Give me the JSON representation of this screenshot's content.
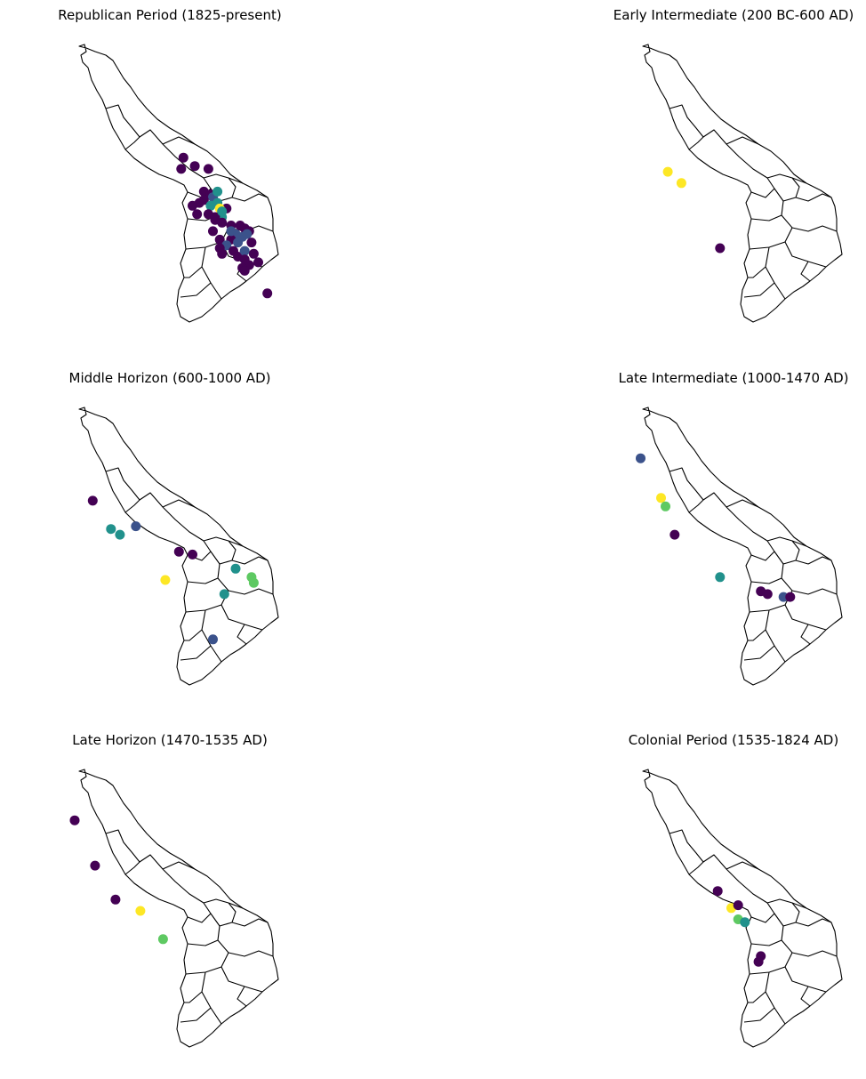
{
  "figure": {
    "panels": [
      {
        "title": "Republican Period (1825-present)"
      },
      {
        "title": "Early Intermediate (200 BC-600 AD)"
      },
      {
        "title": "Middle Horizon (600-1000 AD)"
      },
      {
        "title": "Late Intermediate (1000-1470 AD)"
      },
      {
        "title": "Late Horizon (1470-1535 AD)"
      },
      {
        "title": "Colonial Period (1535-1824 AD)"
      }
    ]
  },
  "chart_data": {
    "type": "scatter",
    "colormap": [
      "#440154",
      "#3b528b",
      "#21918c",
      "#5ec962",
      "#fde725"
    ],
    "maps": [
      {
        "title": "Republican Period (1825-present)",
        "points": [
          {
            "x": 0.57,
            "y": 0.4,
            "c": 0.0
          },
          {
            "x": 0.62,
            "y": 0.43,
            "c": 0.0
          },
          {
            "x": 0.68,
            "y": 0.44,
            "c": 0.0
          },
          {
            "x": 0.56,
            "y": 0.44,
            "c": 0.0
          },
          {
            "x": 0.66,
            "y": 0.52,
            "c": 0.0
          },
          {
            "x": 0.69,
            "y": 0.53,
            "c": 0.0
          },
          {
            "x": 0.7,
            "y": 0.54,
            "c": 0.3
          },
          {
            "x": 0.72,
            "y": 0.52,
            "c": 0.5
          },
          {
            "x": 0.66,
            "y": 0.55,
            "c": 0.0
          },
          {
            "x": 0.69,
            "y": 0.57,
            "c": 0.4
          },
          {
            "x": 0.72,
            "y": 0.56,
            "c": 0.6
          },
          {
            "x": 0.64,
            "y": 0.56,
            "c": 0.0
          },
          {
            "x": 0.61,
            "y": 0.57,
            "c": 0.0
          },
          {
            "x": 0.63,
            "y": 0.6,
            "c": 0.0
          },
          {
            "x": 0.76,
            "y": 0.58,
            "c": 0.0
          },
          {
            "x": 0.73,
            "y": 0.58,
            "c": 1.0
          },
          {
            "x": 0.74,
            "y": 0.61,
            "c": 0.5
          },
          {
            "x": 0.74,
            "y": 0.63,
            "c": 0.0
          },
          {
            "x": 0.71,
            "y": 0.62,
            "c": 0.0
          },
          {
            "x": 0.68,
            "y": 0.6,
            "c": 0.0
          },
          {
            "x": 0.7,
            "y": 0.66,
            "c": 0.0
          },
          {
            "x": 0.78,
            "y": 0.64,
            "c": 0.0
          },
          {
            "x": 0.82,
            "y": 0.64,
            "c": 0.0
          },
          {
            "x": 0.84,
            "y": 0.65,
            "c": 0.0
          },
          {
            "x": 0.86,
            "y": 0.66,
            "c": 0.0
          },
          {
            "x": 0.8,
            "y": 0.67,
            "c": 0.3
          },
          {
            "x": 0.83,
            "y": 0.68,
            "c": 0.3
          },
          {
            "x": 0.85,
            "y": 0.67,
            "c": 0.3
          },
          {
            "x": 0.78,
            "y": 0.69,
            "c": 0.0
          },
          {
            "x": 0.81,
            "y": 0.7,
            "c": 0.3
          },
          {
            "x": 0.87,
            "y": 0.7,
            "c": 0.0
          },
          {
            "x": 0.73,
            "y": 0.69,
            "c": 0.0
          },
          {
            "x": 0.76,
            "y": 0.71,
            "c": 0.3
          },
          {
            "x": 0.73,
            "y": 0.72,
            "c": 0.0
          },
          {
            "x": 0.74,
            "y": 0.74,
            "c": 0.0
          },
          {
            "x": 0.79,
            "y": 0.73,
            "c": 0.0
          },
          {
            "x": 0.81,
            "y": 0.75,
            "c": 0.0
          },
          {
            "x": 0.84,
            "y": 0.73,
            "c": 0.3
          },
          {
            "x": 0.88,
            "y": 0.74,
            "c": 0.0
          },
          {
            "x": 0.84,
            "y": 0.76,
            "c": 0.0
          },
          {
            "x": 0.86,
            "y": 0.78,
            "c": 0.0
          },
          {
            "x": 0.83,
            "y": 0.79,
            "c": 0.0
          },
          {
            "x": 0.9,
            "y": 0.77,
            "c": 0.0
          },
          {
            "x": 0.84,
            "y": 0.8,
            "c": 0.0
          },
          {
            "x": 0.78,
            "y": 0.66,
            "c": 0.3
          },
          {
            "x": 0.71,
            "y": 0.61,
            "c": 0.0
          },
          {
            "x": 0.94,
            "y": 0.88,
            "c": 0.0
          },
          {
            "x": 0.74,
            "y": 0.59,
            "c": 0.5
          }
        ]
      },
      {
        "title": "Early Intermediate (200 BC-600 AD)",
        "points": [
          {
            "x": 0.22,
            "y": 0.45,
            "c": 1.0
          },
          {
            "x": 0.28,
            "y": 0.49,
            "c": 1.0
          },
          {
            "x": 0.45,
            "y": 0.72,
            "c": 0.0
          }
        ]
      },
      {
        "title": "Middle Horizon (600-1000 AD)",
        "points": [
          {
            "x": 0.17,
            "y": 0.33,
            "c": 0.0
          },
          {
            "x": 0.25,
            "y": 0.43,
            "c": 0.5
          },
          {
            "x": 0.29,
            "y": 0.45,
            "c": 0.5
          },
          {
            "x": 0.36,
            "y": 0.42,
            "c": 0.3
          },
          {
            "x": 0.55,
            "y": 0.51,
            "c": 0.0
          },
          {
            "x": 0.61,
            "y": 0.52,
            "c": 0.1
          },
          {
            "x": 0.49,
            "y": 0.61,
            "c": 1.0
          },
          {
            "x": 0.8,
            "y": 0.57,
            "c": 0.5
          },
          {
            "x": 0.87,
            "y": 0.6,
            "c": 0.8
          },
          {
            "x": 0.88,
            "y": 0.62,
            "c": 0.8
          },
          {
            "x": 0.75,
            "y": 0.66,
            "c": 0.5
          },
          {
            "x": 0.7,
            "y": 0.82,
            "c": 0.3
          }
        ]
      },
      {
        "title": "Late Intermediate (1000-1470 AD)",
        "points": [
          {
            "x": 0.1,
            "y": 0.18,
            "c": 0.2
          },
          {
            "x": 0.19,
            "y": 0.32,
            "c": 1.0
          },
          {
            "x": 0.21,
            "y": 0.35,
            "c": 0.7
          },
          {
            "x": 0.25,
            "y": 0.45,
            "c": 0.0
          },
          {
            "x": 0.45,
            "y": 0.6,
            "c": 0.4
          },
          {
            "x": 0.63,
            "y": 0.65,
            "c": 0.0
          },
          {
            "x": 0.66,
            "y": 0.66,
            "c": 0.0
          },
          {
            "x": 0.73,
            "y": 0.67,
            "c": 0.2
          },
          {
            "x": 0.76,
            "y": 0.67,
            "c": 0.0
          }
        ]
      },
      {
        "title": "Late Horizon (1470-1535 AD)",
        "points": [
          {
            "x": 0.09,
            "y": 0.18,
            "c": 0.0
          },
          {
            "x": 0.18,
            "y": 0.34,
            "c": 0.0
          },
          {
            "x": 0.27,
            "y": 0.46,
            "c": 0.0
          },
          {
            "x": 0.38,
            "y": 0.5,
            "c": 1.0
          },
          {
            "x": 0.48,
            "y": 0.6,
            "c": 0.8
          }
        ]
      },
      {
        "title": "Colonial Period (1535-1824 AD)",
        "points": [
          {
            "x": 0.44,
            "y": 0.43,
            "c": 0.0
          },
          {
            "x": 0.5,
            "y": 0.49,
            "c": 1.0
          },
          {
            "x": 0.53,
            "y": 0.48,
            "c": 0.0
          },
          {
            "x": 0.53,
            "y": 0.53,
            "c": 0.8
          },
          {
            "x": 0.56,
            "y": 0.54,
            "c": 0.6
          },
          {
            "x": 0.63,
            "y": 0.66,
            "c": 0.0
          },
          {
            "x": 0.62,
            "y": 0.68,
            "c": 0.0
          }
        ]
      }
    ]
  }
}
